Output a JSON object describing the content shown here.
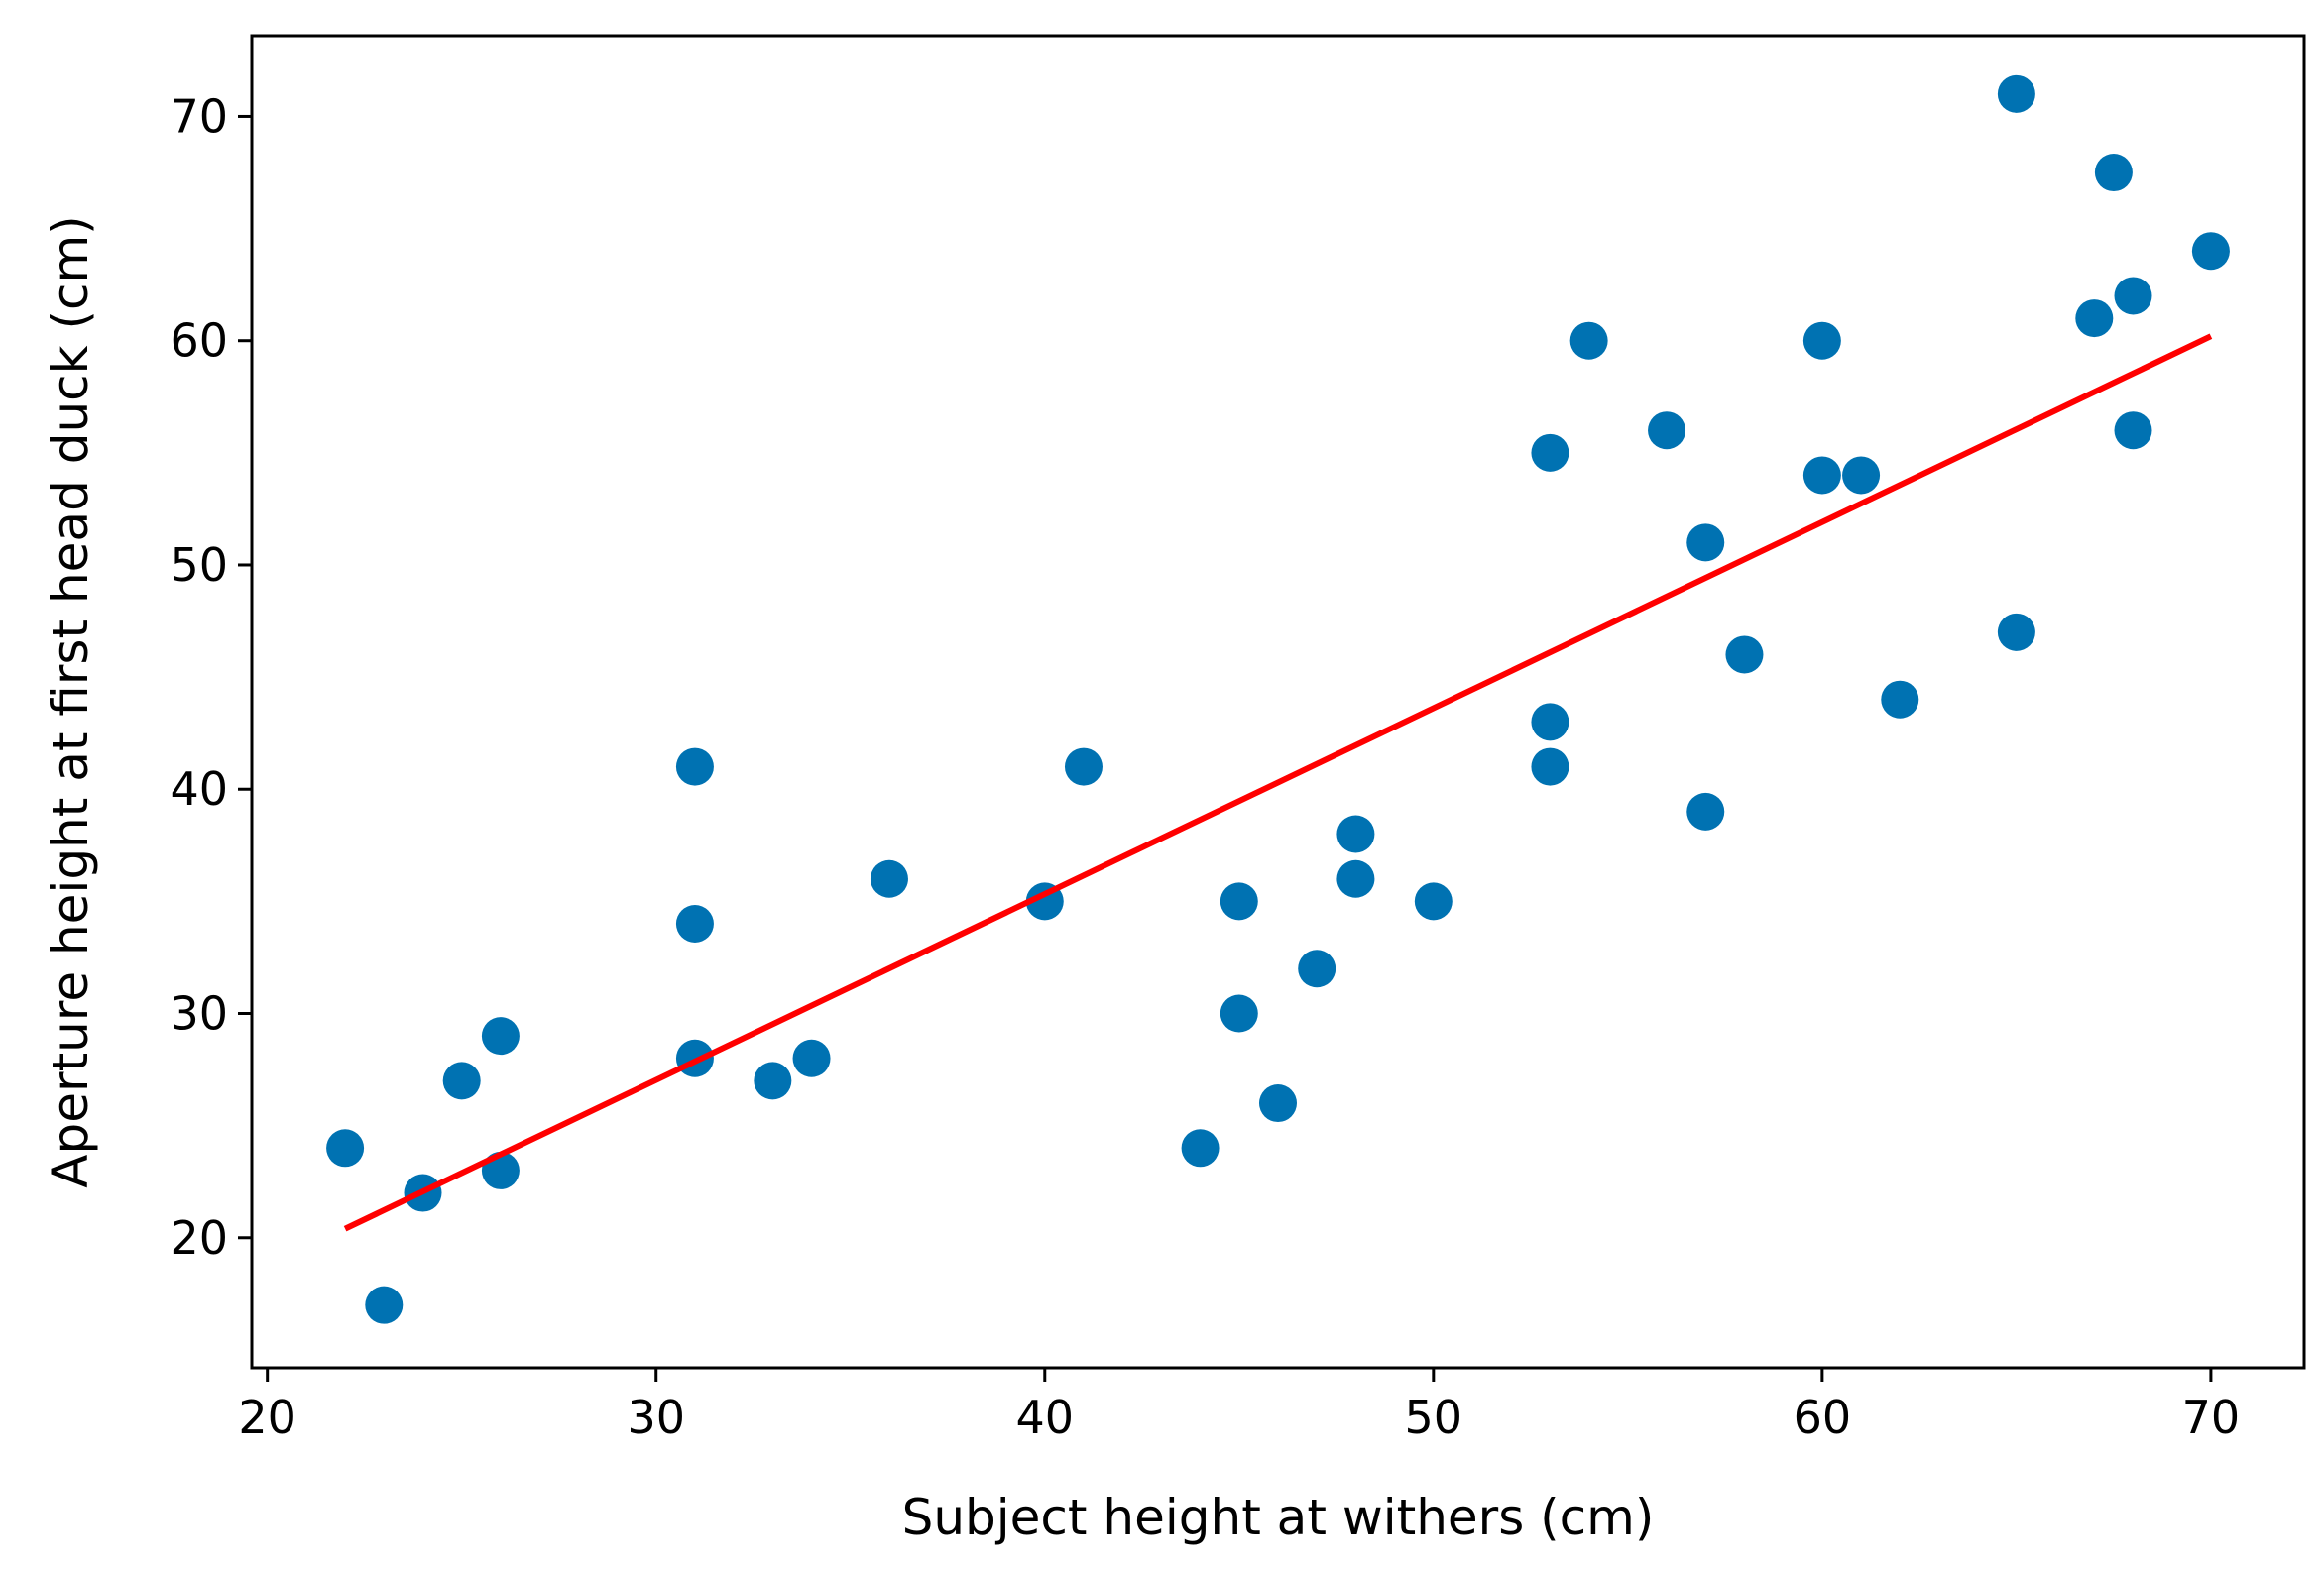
{
  "chart_data": {
    "type": "scatter",
    "title": "",
    "xlabel": "Subject height at withers (cm)",
    "ylabel": "Aperture height at first head duck (cm)",
    "xlim": [
      19.6,
      72.4
    ],
    "ylim": [
      14.2,
      73.6
    ],
    "xticks": [
      20,
      30,
      40,
      50,
      60,
      70
    ],
    "yticks": [
      20,
      30,
      40,
      50,
      60,
      70
    ],
    "grid": false,
    "colors": {
      "points": "#0072B2",
      "fit_line": "#ff0000",
      "axes": "#000000"
    },
    "series": [
      {
        "kind": "points",
        "x": [
          22,
          23,
          24,
          25,
          26,
          26,
          31,
          31,
          31,
          33,
          34,
          36,
          40,
          41,
          44,
          45,
          45,
          46,
          47,
          48,
          48,
          50,
          53,
          53,
          53,
          54,
          56,
          57,
          57,
          58,
          60,
          60,
          61,
          62,
          65,
          65,
          67,
          67.5,
          68,
          68,
          70
        ],
        "y": [
          24,
          17,
          22,
          27,
          29,
          23,
          41,
          34,
          28,
          27,
          28,
          36,
          35,
          41,
          24,
          35,
          30,
          26,
          32,
          38,
          36,
          35,
          55,
          43,
          41,
          60,
          56,
          51,
          39,
          46,
          60,
          54,
          54,
          44,
          71,
          47,
          61,
          67.5,
          62,
          56,
          64
        ]
      },
      {
        "kind": "line",
        "x": [
          22,
          70
        ],
        "y": [
          20.4,
          60.2
        ]
      }
    ]
  }
}
